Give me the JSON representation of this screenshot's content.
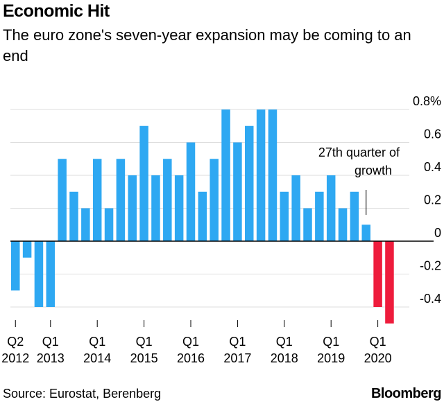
{
  "header": {
    "title": "Economic Hit",
    "subtitle": "The euro zone's seven-year expansion may be coming to an end"
  },
  "footer": {
    "source": "Source: Eurostat, Berenberg",
    "brand": "Bloomberg"
  },
  "colors": {
    "positive": "#2ea8f2",
    "negative": "#ee1c3c",
    "grid": "#dddddd",
    "axis": "#000000"
  },
  "chart_data": {
    "type": "bar",
    "title": "Economic Hit",
    "subtitle": "The euro zone's seven-year expansion may be coming to an end",
    "xlabel": "",
    "ylabel": "",
    "ylim": [
      -0.5,
      0.8
    ],
    "yticks": [
      "0.8%",
      "0.6",
      "0.4",
      "0.2",
      "0",
      "-0.2",
      "-0.4"
    ],
    "ytick_values": [
      0.8,
      0.6,
      0.4,
      0.2,
      0,
      -0.2,
      -0.4
    ],
    "grid": true,
    "categories": [
      "Q2 2012",
      "Q3 2012",
      "Q4 2012",
      "Q1 2013",
      "Q2 2013",
      "Q3 2013",
      "Q4 2013",
      "Q1 2014",
      "Q2 2014",
      "Q3 2014",
      "Q4 2014",
      "Q1 2015",
      "Q2 2015",
      "Q3 2015",
      "Q4 2015",
      "Q1 2016",
      "Q2 2016",
      "Q3 2016",
      "Q4 2016",
      "Q1 2017",
      "Q2 2017",
      "Q3 2017",
      "Q4 2017",
      "Q1 2018",
      "Q2 2018",
      "Q3 2018",
      "Q4 2018",
      "Q1 2019",
      "Q2 2019",
      "Q3 2019",
      "Q4 2019",
      "Q1 2020",
      "Q2 2020"
    ],
    "values": [
      -0.3,
      -0.1,
      -0.4,
      -0.4,
      0.5,
      0.3,
      0.2,
      0.5,
      0.2,
      0.5,
      0.4,
      0.7,
      0.4,
      0.5,
      0.4,
      0.6,
      0.3,
      0.5,
      0.8,
      0.6,
      0.7,
      0.8,
      0.8,
      0.3,
      0.4,
      0.2,
      0.3,
      0.4,
      0.2,
      0.3,
      0.1,
      -0.4,
      -0.5
    ],
    "xtick_labels": [
      {
        "line1": "Q2",
        "line2": "2012",
        "index": 0
      },
      {
        "line1": "Q1",
        "line2": "2013",
        "index": 3
      },
      {
        "line1": "Q1",
        "line2": "2014",
        "index": 7
      },
      {
        "line1": "Q1",
        "line2": "2015",
        "index": 11
      },
      {
        "line1": "Q1",
        "line2": "2016",
        "index": 15
      },
      {
        "line1": "Q1",
        "line2": "2017",
        "index": 19
      },
      {
        "line1": "Q1",
        "line2": "2018",
        "index": 23
      },
      {
        "line1": "Q1",
        "line2": "2019",
        "index": 27
      },
      {
        "line1": "Q1",
        "line2": "2020",
        "index": 31
      }
    ],
    "annotation": {
      "line1": "27th quarter of",
      "line2": "growth",
      "index": 30
    }
  }
}
